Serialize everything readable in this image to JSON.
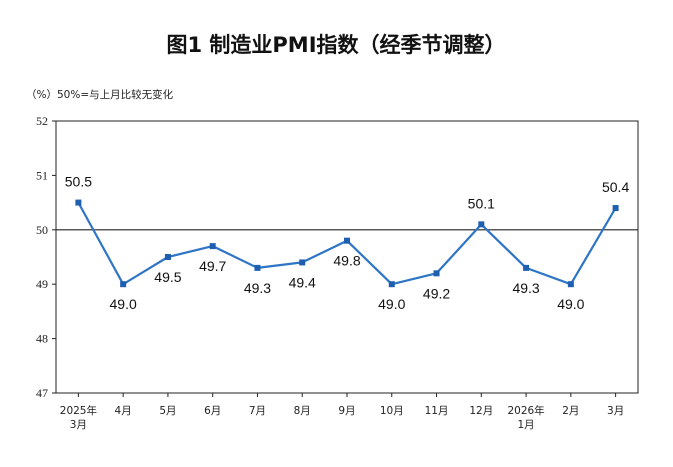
{
  "title": "图1  制造业PMI指数（经季节调整）",
  "note": "（%）50%=与上月比较无变化",
  "colors": {
    "line": "#2e75c6",
    "marker": "#1f5fb0",
    "axis": "#222222",
    "reference": "#222222"
  },
  "chart_data": {
    "type": "line",
    "title": "图1  制造业PMI指数（经季节调整）",
    "ylabel": "（%）",
    "xlabel": "",
    "ylim": [
      47,
      52
    ],
    "yticks": [
      47,
      48,
      49,
      50,
      51,
      52
    ],
    "reference_line": 50,
    "grid": false,
    "legend": "none",
    "categories": [
      [
        "2025年",
        "3月"
      ],
      [
        "4月"
      ],
      [
        "5月"
      ],
      [
        "6月"
      ],
      [
        "7月"
      ],
      [
        "8月"
      ],
      [
        "9月"
      ],
      [
        "10月"
      ],
      [
        "11月"
      ],
      [
        "12月"
      ],
      [
        "2026年",
        "1月"
      ],
      [
        "2月"
      ],
      [
        "3月"
      ]
    ],
    "series": [
      {
        "values": [
          50.5,
          49.0,
          49.5,
          49.7,
          49.3,
          49.4,
          49.8,
          49.0,
          49.2,
          50.1,
          49.3,
          49.0,
          50.4
        ],
        "labels": [
          "50.5",
          "49.0",
          "49.5",
          "49.7",
          "49.3",
          "49.4",
          "49.8",
          "49.0",
          "49.2",
          "50.1",
          "49.3",
          "49.0",
          "50.4"
        ],
        "label_positions": [
          "above",
          "below",
          "below",
          "below",
          "below",
          "below",
          "below",
          "below",
          "below",
          "above",
          "below",
          "below",
          "above"
        ]
      }
    ]
  }
}
